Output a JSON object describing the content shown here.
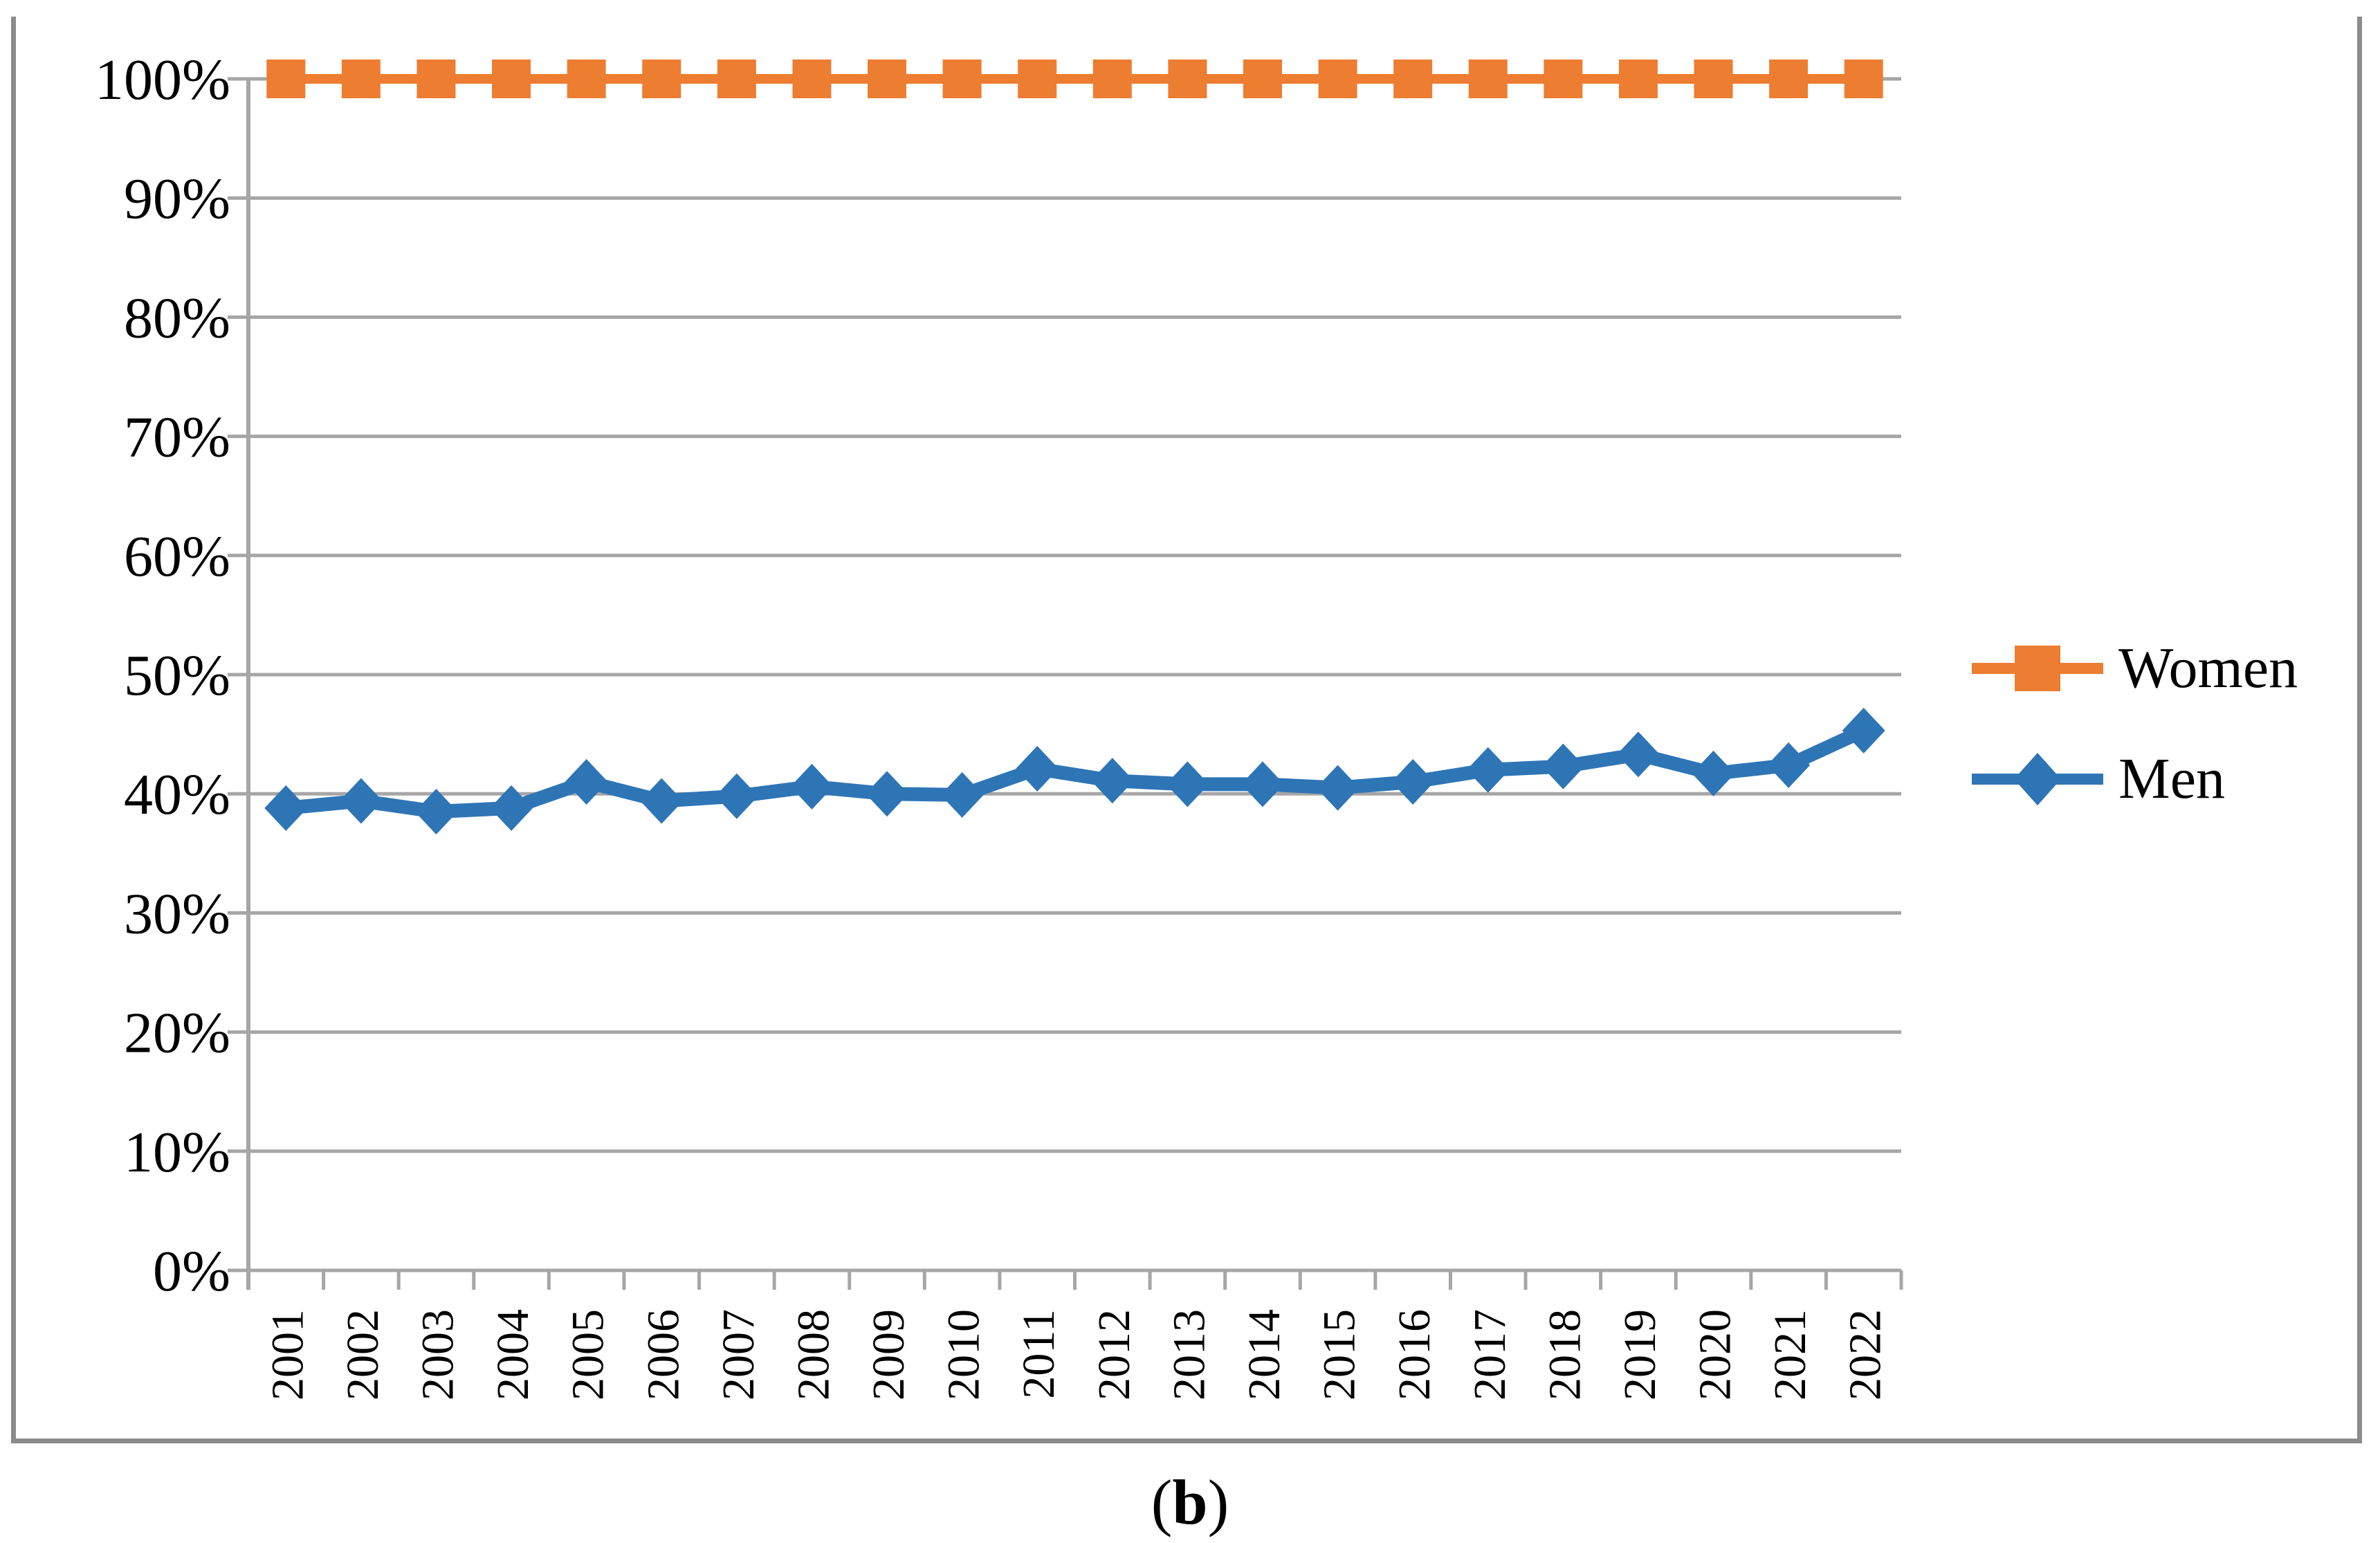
{
  "figure_caption": {
    "open": "(",
    "letter": "b",
    "close": ")"
  },
  "colors": {
    "axis": "#A6A6A6",
    "grid": "#A6A6A6",
    "frame": "#8C8C8C",
    "women_series": "#ED7D31",
    "men_series": "#2E75B6"
  },
  "legend": {
    "position": "right",
    "women_label": "Women",
    "men_label": "Men"
  },
  "chart_data": {
    "type": "line",
    "x": [
      "2001",
      "2002",
      "2003",
      "2004",
      "2005",
      "2006",
      "2007",
      "2008",
      "2009",
      "2010",
      "2011",
      "2012",
      "2013",
      "2014",
      "2015",
      "2016",
      "2017",
      "2018",
      "2019",
      "2020",
      "2021",
      "2022"
    ],
    "series": [
      {
        "name": "Women",
        "color": "#ED7D31",
        "marker": "square",
        "values": [
          100,
          100,
          100,
          100,
          100,
          100,
          100,
          100,
          100,
          100,
          100,
          100,
          100,
          100,
          100,
          100,
          100,
          100,
          100,
          100,
          100,
          100
        ]
      },
      {
        "name": "Men",
        "color": "#2E75B6",
        "marker": "diamond",
        "values": [
          38.8,
          39.4,
          38.5,
          38.8,
          41.0,
          39.4,
          39.8,
          40.6,
          40.0,
          39.9,
          42.1,
          41.1,
          40.8,
          40.8,
          40.5,
          41.0,
          42.0,
          42.3,
          43.3,
          41.7,
          42.4,
          45.3
        ]
      }
    ],
    "y_ticks": [
      "0%",
      "10%",
      "20%",
      "30%",
      "40%",
      "50%",
      "60%",
      "70%",
      "80%",
      "90%",
      "100%"
    ],
    "ylim": [
      0,
      100
    ],
    "grid": true,
    "legend_position": "right",
    "title": "",
    "xlabel": "",
    "ylabel": ""
  }
}
